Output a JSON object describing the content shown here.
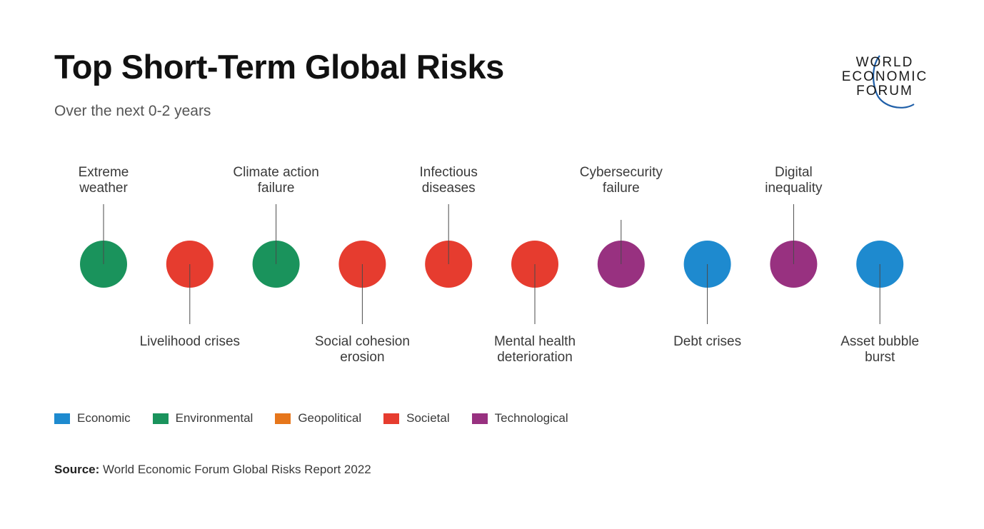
{
  "title": "Top Short-Term Global Risks",
  "subtitle": "Over the next 0-2 years",
  "logo": {
    "line1": "WORLD",
    "line2": "ECONOMIC",
    "line3": "FORUM"
  },
  "colors": {
    "Economic": "#1E8ACF",
    "Environmental": "#1A935C",
    "Geopolitical": "#E6761B",
    "Societal": "#E63C2F",
    "Technological": "#983180"
  },
  "risks": [
    {
      "rank": 1,
      "label_lines": [
        "Extreme",
        "weather"
      ],
      "category": "Environmental",
      "label_position": "top"
    },
    {
      "rank": 2,
      "label_lines": [
        "Livelihood crises"
      ],
      "category": "Societal",
      "label_position": "bottom"
    },
    {
      "rank": 3,
      "label_lines": [
        "Climate action",
        "failure"
      ],
      "category": "Environmental",
      "label_position": "top"
    },
    {
      "rank": 4,
      "label_lines": [
        "Social cohesion",
        "erosion"
      ],
      "category": "Societal",
      "label_position": "bottom"
    },
    {
      "rank": 5,
      "label_lines": [
        "Infectious",
        "diseases"
      ],
      "category": "Societal",
      "label_position": "top"
    },
    {
      "rank": 6,
      "label_lines": [
        "Mental health",
        "deterioration"
      ],
      "category": "Societal",
      "label_position": "bottom"
    },
    {
      "rank": 7,
      "label_lines": [
        "Cybersecurity",
        "failure"
      ],
      "category": "Technological",
      "label_position": "top"
    },
    {
      "rank": 8,
      "label_lines": [
        "Debt crises"
      ],
      "category": "Economic",
      "label_position": "bottom"
    },
    {
      "rank": 9,
      "label_lines": [
        "Digital",
        "inequality"
      ],
      "category": "Technological",
      "label_position": "top"
    },
    {
      "rank": 10,
      "label_lines": [
        "Asset bubble",
        "burst"
      ],
      "category": "Economic",
      "label_position": "bottom"
    }
  ],
  "legend": [
    {
      "label": "Economic",
      "color": "#1E8ACF"
    },
    {
      "label": "Environmental",
      "color": "#1A935C"
    },
    {
      "label": "Geopolitical",
      "color": "#E6761B"
    },
    {
      "label": "Societal",
      "color": "#E63C2F"
    },
    {
      "label": "Technological",
      "color": "#983180"
    }
  ],
  "source": {
    "label": "Source:",
    "text": "World Economic Forum Global Risks Report 2022"
  }
}
